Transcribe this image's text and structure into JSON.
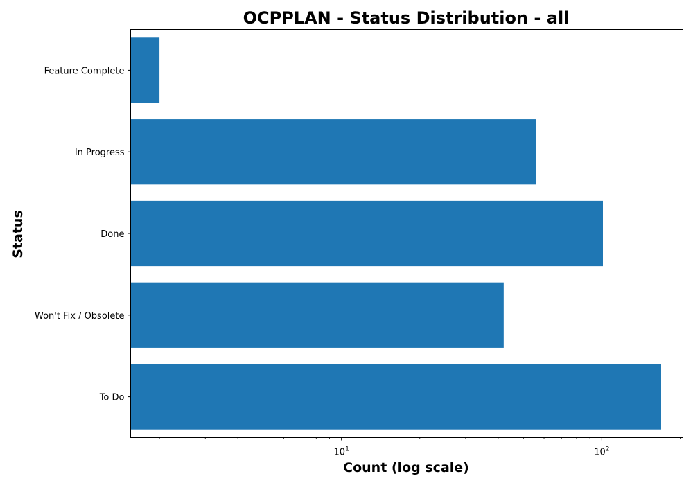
{
  "chart_data": {
    "type": "bar",
    "orientation": "horizontal",
    "title": "OCPPLAN - Status Distribution - all",
    "xlabel": "Count (log scale)",
    "ylabel": "Status",
    "xscale": "log",
    "xlim": [
      1.55,
      205
    ],
    "categories": [
      "Feature Complete",
      "In Progress",
      "Done",
      "Won't Fix / Obsolete",
      "To Do"
    ],
    "values": [
      2,
      56,
      101,
      42,
      169
    ],
    "bar_color": "#1f77b4",
    "x_tick_labels": [
      {
        "base": "10",
        "exp": "1",
        "value": 10
      },
      {
        "base": "10",
        "exp": "2",
        "value": 100
      }
    ],
    "grid": false,
    "legend": "none"
  }
}
